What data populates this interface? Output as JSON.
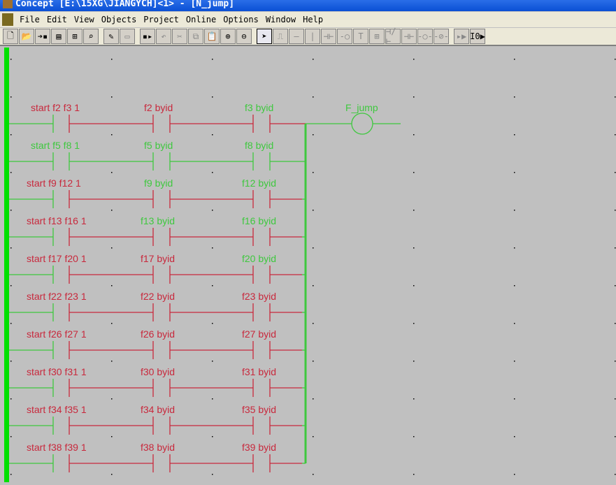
{
  "title": "Concept [E:\\15XG\\JIANGYCH]<1> - [N_jump]",
  "menu": [
    "File",
    "Edit",
    "View",
    "Objects",
    "Project",
    "Online",
    "Options",
    "Window",
    "Help"
  ],
  "toolbar": [
    {
      "icon": "new-file-icon",
      "glyph": "🗋"
    },
    {
      "icon": "open-folder-icon",
      "glyph": "📂"
    },
    {
      "icon": "save-icon",
      "glyph": "➔▪"
    },
    {
      "icon": "properties-icon",
      "glyph": "▤"
    },
    {
      "icon": "tree-icon",
      "glyph": "⊞"
    },
    {
      "icon": "find-icon",
      "glyph": "⌕"
    },
    {
      "sep": true
    },
    {
      "icon": "cut-section-icon",
      "glyph": "✎"
    },
    {
      "icon": "section-icon",
      "glyph": "▭",
      "disabled": true
    },
    {
      "sep": true
    },
    {
      "icon": "import-icon",
      "glyph": "▪▸"
    },
    {
      "icon": "undo-icon",
      "glyph": "↶",
      "disabled": true
    },
    {
      "icon": "cut-icon",
      "glyph": "✂",
      "disabled": true
    },
    {
      "icon": "copy-icon",
      "glyph": "⧉",
      "disabled": true
    },
    {
      "icon": "paste-icon",
      "glyph": "📋",
      "disabled": true
    },
    {
      "icon": "zoom-in-icon",
      "glyph": "⊕"
    },
    {
      "icon": "zoom-out-icon",
      "glyph": "⊖"
    },
    {
      "sep": true
    },
    {
      "icon": "select-pointer-icon",
      "glyph": "➤",
      "selected": true
    },
    {
      "icon": "step-line-icon",
      "glyph": "⎍",
      "disabled": true
    },
    {
      "icon": "horizontal-link-icon",
      "glyph": "—",
      "disabled": true
    },
    {
      "icon": "vertical-link-icon",
      "glyph": "|",
      "disabled": true
    },
    {
      "icon": "function-block-icon",
      "glyph": "⊣⊢",
      "disabled": true
    },
    {
      "icon": "negation-icon",
      "glyph": "-○",
      "disabled": true
    },
    {
      "icon": "text-icon",
      "glyph": "T",
      "disabled": true
    },
    {
      "icon": "variable-grid-icon",
      "glyph": "⊞",
      "disabled": true
    },
    {
      "icon": "nc-contact-icon",
      "glyph": "⊣/⊢",
      "disabled": true
    },
    {
      "icon": "no-contact-icon",
      "glyph": "⊣⊢",
      "disabled": true
    },
    {
      "icon": "coil-icon",
      "glyph": "-○-",
      "disabled": true
    },
    {
      "icon": "negated-coil-icon",
      "glyph": "-⊘-",
      "disabled": true
    },
    {
      "sep": true
    },
    {
      "icon": "animate-icon",
      "glyph": "▸▶",
      "disabled": true
    },
    {
      "icon": "animation-toggle-icon",
      "glyph": "I0▶"
    }
  ],
  "colors": {
    "on": "#3ec83e",
    "off": "#c8283c",
    "rail": "#00e000",
    "background": "#c0c0c0"
  },
  "rungs": [
    {
      "contacts": [
        {
          "label": "start_f2_f3_1",
          "state": "off"
        },
        {
          "label": "f2_byid",
          "state": "off"
        },
        {
          "label": "f3_byid",
          "state": "on"
        }
      ],
      "segments": [
        "off",
        "off",
        "off"
      ]
    },
    {
      "contacts": [
        {
          "label": "start_f5_f8_1",
          "state": "on"
        },
        {
          "label": "f5_byid",
          "state": "on"
        },
        {
          "label": "f8_byid",
          "state": "on"
        }
      ],
      "segments": [
        "on",
        "on",
        "on"
      ]
    },
    {
      "contacts": [
        {
          "label": "start_f9_f12_1",
          "state": "off"
        },
        {
          "label": "f9_byid",
          "state": "on"
        },
        {
          "label": "f12_byid",
          "state": "on"
        }
      ],
      "segments": [
        "off",
        "off",
        "off"
      ]
    },
    {
      "contacts": [
        {
          "label": "start_f13_f16_1",
          "state": "off"
        },
        {
          "label": "f13_byid",
          "state": "on"
        },
        {
          "label": "f16_byid",
          "state": "on"
        }
      ],
      "segments": [
        "off",
        "off",
        "off"
      ]
    },
    {
      "contacts": [
        {
          "label": "start_f17_f20_1",
          "state": "off"
        },
        {
          "label": "f17_byid",
          "state": "off"
        },
        {
          "label": "f20_byid",
          "state": "on"
        }
      ],
      "segments": [
        "off",
        "off",
        "off"
      ]
    },
    {
      "contacts": [
        {
          "label": "start_f22_f23_1",
          "state": "off"
        },
        {
          "label": "f22_byid",
          "state": "off"
        },
        {
          "label": "f23_byid",
          "state": "off"
        }
      ],
      "segments": [
        "off",
        "off",
        "off"
      ]
    },
    {
      "contacts": [
        {
          "label": "start_f26_f27_1",
          "state": "off"
        },
        {
          "label": "f26_byid",
          "state": "off"
        },
        {
          "label": "f27_byid",
          "state": "off"
        }
      ],
      "segments": [
        "off",
        "off",
        "off"
      ]
    },
    {
      "contacts": [
        {
          "label": "start_f30_f31_1",
          "state": "off"
        },
        {
          "label": "f30_byid",
          "state": "off"
        },
        {
          "label": "f31_byid",
          "state": "off"
        }
      ],
      "segments": [
        "off",
        "off",
        "off"
      ]
    },
    {
      "contacts": [
        {
          "label": "start_f34_f35_1",
          "state": "off"
        },
        {
          "label": "f34_byid",
          "state": "off"
        },
        {
          "label": "f35_byid",
          "state": "off"
        }
      ],
      "segments": [
        "off",
        "off",
        "off"
      ]
    },
    {
      "contacts": [
        {
          "label": "start_f38_f39_1",
          "state": "off"
        },
        {
          "label": "f38_byid",
          "state": "off"
        },
        {
          "label": "f39_byid",
          "state": "off"
        }
      ],
      "segments": [
        "off",
        "off",
        "off"
      ]
    }
  ],
  "coil": {
    "label": "F_jump",
    "state": "on"
  }
}
